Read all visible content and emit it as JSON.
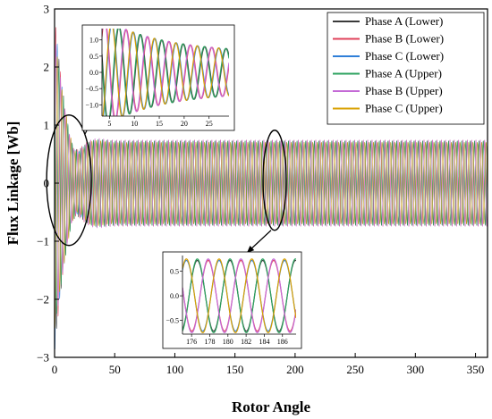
{
  "chart_data": {
    "type": "line",
    "title": "",
    "xlabel": "Rotor Angle",
    "ylabel": "Flux Linkage [Wb]",
    "xlim": [
      0,
      360
    ],
    "ylim": [
      -3,
      3
    ],
    "x_ticks": [
      "0",
      "50",
      "100",
      "150",
      "200",
      "250",
      "300",
      "350"
    ],
    "y_ticks": [
      "3",
      "2",
      "1",
      "0",
      "−1",
      "−2",
      "−3"
    ],
    "grid": false,
    "legend_position": "top-right",
    "steady_state_amplitude": 0.72,
    "electrical_period_deg": 3.6,
    "series": [
      {
        "name": "Phase A (Lower)",
        "color": "#3a3a3a",
        "phase_deg": 0
      },
      {
        "name": "Phase B (Lower)",
        "color": "#e0405a",
        "phase_deg": -120
      },
      {
        "name": "Phase C (Lower)",
        "color": "#2f7fd8",
        "phase_deg": 120
      },
      {
        "name": "Phase A (Upper)",
        "color": "#2ca25f",
        "phase_deg": 0
      },
      {
        "name": "Phase B (Upper)",
        "color": "#c46ad6",
        "phase_deg": -120
      },
      {
        "name": "Phase C (Upper)",
        "color": "#d9a000",
        "phase_deg": 120
      }
    ],
    "insets": [
      {
        "name": "start",
        "xlim": [
          3.5,
          29
        ],
        "ylim": [
          -1.35,
          1.35
        ],
        "x_ticks": [
          "5",
          "10",
          "15",
          "20",
          "25"
        ],
        "y_ticks": [
          "1.0",
          "0.5",
          "0.0",
          "−0.5",
          "−1.0"
        ],
        "callout_angle": 12
      },
      {
        "name": "steady",
        "xlim": [
          175,
          187.5
        ],
        "ylim": [
          -0.78,
          0.82
        ],
        "x_ticks": [
          "176",
          "178",
          "180",
          "182",
          "184",
          "186"
        ],
        "y_ticks": [
          "0.5",
          "0.0",
          "−0.5"
        ],
        "callout_angle": 183
      }
    ]
  }
}
